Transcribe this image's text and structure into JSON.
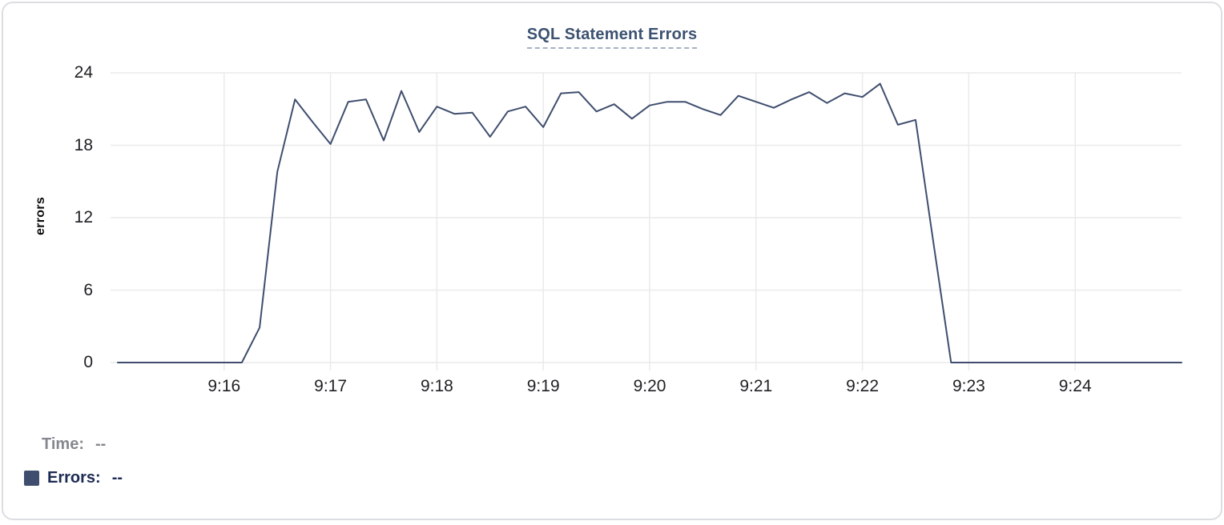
{
  "title": "SQL Statement Errors",
  "y_axis": {
    "label": "errors",
    "ticks": [
      24,
      18,
      12,
      6,
      0
    ]
  },
  "x_axis": {
    "ticks": [
      "9:16",
      "9:17",
      "9:18",
      "9:19",
      "9:20",
      "9:21",
      "9:22",
      "9:23",
      "9:24"
    ]
  },
  "legend": {
    "time_label": "Time:",
    "time_value": "--",
    "errors_label": "Errors:",
    "errors_value": "--"
  },
  "colors": {
    "line": "#3f4e6e",
    "title": "#3c5271",
    "grid": "#eaeaec",
    "tick_text": "#1f2023",
    "legend_time_text": "#85888e",
    "legend_errors_text": "#1d2b52",
    "card_border": "#dcdee1"
  },
  "chart_data": {
    "type": "line",
    "title": "SQL Statement Errors",
    "xlabel": "",
    "ylabel": "errors",
    "ylim": [
      0,
      24
    ],
    "x_range": [
      "9:15:00",
      "9:25:00"
    ],
    "grid": true,
    "legend_position": "bottom-left",
    "series": [
      {
        "name": "Errors",
        "color": "#3f4e6e",
        "points": [
          [
            "9:15:00",
            0
          ],
          [
            "9:15:10",
            0
          ],
          [
            "9:15:20",
            0
          ],
          [
            "9:15:30",
            0
          ],
          [
            "9:15:40",
            0
          ],
          [
            "9:15:50",
            0
          ],
          [
            "9:16:00",
            0
          ],
          [
            "9:16:10",
            0
          ],
          [
            "9:16:20",
            2.9
          ],
          [
            "9:16:30",
            15.8
          ],
          [
            "9:16:40",
            21.8
          ],
          [
            "9:16:50",
            19.9
          ],
          [
            "9:17:00",
            18.1
          ],
          [
            "9:17:10",
            21.6
          ],
          [
            "9:17:20",
            21.8
          ],
          [
            "9:17:30",
            18.4
          ],
          [
            "9:17:40",
            22.5
          ],
          [
            "9:17:50",
            19.1
          ],
          [
            "9:18:00",
            21.2
          ],
          [
            "9:18:10",
            20.6
          ],
          [
            "9:18:20",
            20.7
          ],
          [
            "9:18:30",
            18.7
          ],
          [
            "9:18:40",
            20.8
          ],
          [
            "9:18:50",
            21.2
          ],
          [
            "9:19:00",
            19.5
          ],
          [
            "9:19:10",
            22.3
          ],
          [
            "9:19:20",
            22.4
          ],
          [
            "9:19:30",
            20.8
          ],
          [
            "9:19:40",
            21.4
          ],
          [
            "9:19:50",
            20.2
          ],
          [
            "9:20:00",
            21.3
          ],
          [
            "9:20:10",
            21.6
          ],
          [
            "9:20:20",
            21.6
          ],
          [
            "9:20:30",
            21.0
          ],
          [
            "9:20:40",
            20.5
          ],
          [
            "9:20:50",
            22.1
          ],
          [
            "9:21:00",
            21.6
          ],
          [
            "9:21:10",
            21.1
          ],
          [
            "9:21:20",
            21.8
          ],
          [
            "9:21:30",
            22.4
          ],
          [
            "9:21:40",
            21.5
          ],
          [
            "9:21:50",
            22.3
          ],
          [
            "9:22:00",
            22.0
          ],
          [
            "9:22:10",
            23.1
          ],
          [
            "9:22:20",
            19.7
          ],
          [
            "9:22:30",
            20.1
          ],
          [
            "9:22:40",
            10.0
          ],
          [
            "9:22:50",
            0
          ],
          [
            "9:23:00",
            0
          ],
          [
            "9:23:10",
            0
          ],
          [
            "9:23:20",
            0
          ],
          [
            "9:23:30",
            0
          ],
          [
            "9:23:40",
            0
          ],
          [
            "9:23:50",
            0
          ],
          [
            "9:24:00",
            0
          ],
          [
            "9:24:10",
            0
          ],
          [
            "9:24:20",
            0
          ],
          [
            "9:24:30",
            0
          ],
          [
            "9:24:40",
            0
          ],
          [
            "9:24:50",
            0
          ],
          [
            "9:25:00",
            0
          ]
        ]
      }
    ]
  }
}
